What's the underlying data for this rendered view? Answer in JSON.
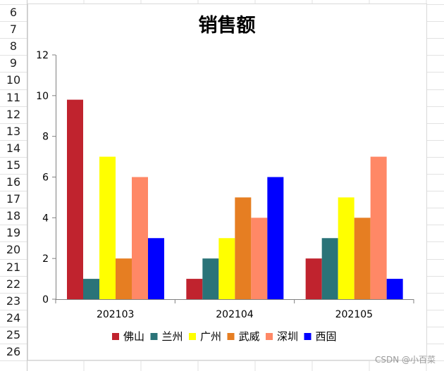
{
  "row_numbers": [
    "6",
    "7",
    "8",
    "9",
    "10",
    "11",
    "12",
    "13",
    "14",
    "15",
    "16",
    "17",
    "18",
    "19",
    "20",
    "21",
    "22",
    "23",
    "24",
    "25",
    "26"
  ],
  "watermark": "CSDN @小百菜",
  "chart_data": {
    "type": "bar",
    "title": "销售额",
    "xlabel": "",
    "ylabel": "",
    "categories": [
      "202103",
      "202104",
      "202105"
    ],
    "ylim": [
      0,
      12
    ],
    "yticks": [
      0,
      2,
      4,
      6,
      8,
      10,
      12
    ],
    "grid": false,
    "legend_position": "bottom",
    "series": [
      {
        "name": "佛山",
        "color": "#c0232e",
        "values": [
          9.8,
          1,
          2
        ]
      },
      {
        "name": "兰州",
        "color": "#2a7378",
        "values": [
          1,
          2,
          3
        ]
      },
      {
        "name": "广州",
        "color": "#ffff00",
        "values": [
          7,
          3,
          5
        ]
      },
      {
        "name": "武威",
        "color": "#e67e22",
        "values": [
          2,
          5,
          4
        ]
      },
      {
        "name": "深圳",
        "color": "#ff8866",
        "values": [
          6,
          4,
          7
        ]
      },
      {
        "name": "西固",
        "color": "#0000ff",
        "values": [
          3,
          6,
          1
        ]
      }
    ]
  }
}
